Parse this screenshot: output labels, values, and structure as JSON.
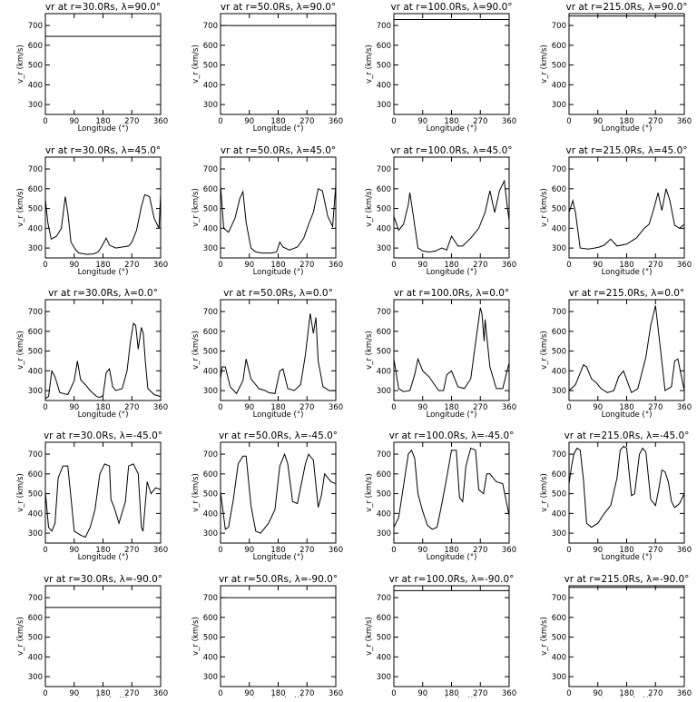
{
  "chart_data": {
    "type": "line",
    "xlabel": "Longitude (°)",
    "ylabel": "v_r (km/s)",
    "xlim": [
      0,
      360
    ],
    "ylim": [
      250,
      760
    ],
    "xticks": [
      "0",
      "90",
      "180",
      "270",
      "360"
    ],
    "yticks": [
      "300",
      "400",
      "500",
      "600",
      "700"
    ],
    "grid": false,
    "line_color": "#000000",
    "rows": [
      {
        "panels": [
          {
            "title": "vr at r=30.0Rs, λ=90.0°",
            "x": [
              0,
              360
            ],
            "y": [
              645,
              645
            ]
          },
          {
            "title": "vr at r=50.0Rs, λ=90.0°",
            "x": [
              0,
              360
            ],
            "y": [
              700,
              700
            ]
          },
          {
            "title": "vr at r=100.0Rs, λ=90.0°",
            "x": [
              0,
              360
            ],
            "y": [
              730,
              730
            ]
          },
          {
            "title": "vr at r=215.0Rs, λ=90.0°",
            "x": [
              0,
              360
            ],
            "y": [
              748,
              748
            ]
          }
        ]
      },
      {
        "panels": [
          {
            "title": "vr at r=30.0Rs, λ=45.0°",
            "x": [
              0,
              8,
              18,
              35,
              50,
              62,
              70,
              80,
              95,
              105,
              130,
              150,
              165,
              175,
              190,
              200,
              220,
              240,
              260,
              270,
              285,
              300,
              310,
              325,
              340,
              355,
              360
            ],
            "y": [
              545,
              425,
              345,
              360,
              400,
              560,
              480,
              330,
              290,
              275,
              268,
              270,
              280,
              305,
              350,
              315,
              300,
              305,
              310,
              330,
              390,
              510,
              570,
              560,
              450,
              400,
              570
            ]
          },
          {
            "title": "vr at r=50.0Rs, λ=45.0°",
            "x": [
              0,
              10,
              25,
              45,
              60,
              70,
              80,
              95,
              110,
              130,
              160,
              175,
              185,
              195,
              215,
              240,
              260,
              275,
              290,
              305,
              318,
              335,
              350,
              360
            ],
            "y": [
              620,
              400,
              380,
              450,
              550,
              585,
              430,
              300,
              280,
              275,
              275,
              280,
              330,
              305,
              290,
              305,
              350,
              420,
              480,
              600,
              590,
              460,
              410,
              620
            ]
          },
          {
            "title": "vr at r=100.0Rs, λ=45.0°",
            "x": [
              0,
              15,
              30,
              45,
              50,
              60,
              75,
              90,
              110,
              130,
              150,
              165,
              180,
              200,
              215,
              240,
              265,
              285,
              300,
              315,
              330,
              345,
              355,
              360
            ],
            "y": [
              460,
              390,
              420,
              520,
              580,
              470,
              300,
              285,
              280,
              285,
              300,
              290,
              360,
              310,
              310,
              350,
              400,
              480,
              590,
              480,
              590,
              640,
              500,
              440
            ]
          },
          {
            "title": "vr at r=215.0Rs, λ=45.0°",
            "x": [
              0,
              12,
              20,
              25,
              35,
              60,
              80,
              95,
              110,
              130,
              150,
              180,
              210,
              235,
              250,
              265,
              278,
              290,
              303,
              315,
              330,
              345,
              360
            ],
            "y": [
              480,
              540,
              480,
              420,
              300,
              295,
              300,
              305,
              315,
              345,
              310,
              320,
              350,
              400,
              420,
              500,
              580,
              490,
              600,
              540,
              415,
              400,
              420
            ]
          }
        ]
      },
      {
        "panels": [
          {
            "title": "vr at r=30.0Rs, λ=0.0°",
            "x": [
              0,
              10,
              20,
              30,
              45,
              70,
              90,
              100,
              110,
              125,
              140,
              160,
              170,
              180,
              190,
              200,
              210,
              220,
              240,
              255,
              265,
              275,
              282,
              290,
              300,
              306,
              312,
              320,
              340,
              360
            ],
            "y": [
              260,
              270,
              400,
              370,
              290,
              280,
              350,
              450,
              355,
              330,
              300,
              270,
              265,
              275,
              390,
              410,
              320,
              300,
              310,
              400,
              540,
              640,
              630,
              510,
              620,
              590,
              450,
              310,
              280,
              270
            ]
          },
          {
            "title": "vr at r=50.0Rs, λ=0.0°",
            "x": [
              0,
              5,
              15,
              30,
              50,
              70,
              80,
              95,
              105,
              120,
              140,
              150,
              170,
              185,
              195,
              210,
              230,
              250,
              265,
              280,
              290,
              298,
              305,
              320,
              340,
              360
            ],
            "y": [
              360,
              420,
              420,
              320,
              285,
              350,
              460,
              360,
              340,
              310,
              300,
              290,
              285,
              400,
              410,
              310,
              300,
              330,
              480,
              690,
              590,
              670,
              450,
              320,
              300,
              300
            ]
          },
          {
            "title": "vr at r=100.0Rs, λ=0.0°",
            "x": [
              0,
              15,
              30,
              50,
              65,
              75,
              90,
              110,
              140,
              155,
              165,
              180,
              200,
              220,
              240,
              260,
              270,
              275,
              282,
              285,
              300,
              320,
              340,
              360
            ],
            "y": [
              460,
              310,
              295,
              300,
              380,
              460,
              400,
              370,
              300,
              300,
              380,
              400,
              320,
              310,
              360,
              600,
              720,
              690,
              550,
              660,
              420,
              310,
              310,
              440
            ]
          },
          {
            "title": "vr at r=215.0Rs, λ=0.0°",
            "x": [
              0,
              20,
              35,
              45,
              55,
              70,
              85,
              100,
              120,
              140,
              155,
              170,
              195,
              215,
              240,
              255,
              270,
              285,
              300,
              320,
              330,
              340,
              360
            ],
            "y": [
              300,
              330,
              390,
              430,
              420,
              360,
              340,
              310,
              290,
              300,
              370,
              400,
              290,
              310,
              470,
              630,
              730,
              520,
              300,
              320,
              450,
              460,
              300
            ]
          }
        ]
      },
      {
        "panels": [
          {
            "title": "vr at r=30.0Rs, λ=-45.0°",
            "x": [
              0,
              10,
              20,
              30,
              40,
              55,
              70,
              80,
              90,
              100,
              110,
              125,
              140,
              155,
              170,
              185,
              200,
              205,
              215,
              230,
              250,
              260,
              275,
              290,
              300,
              305,
              312,
              318,
              330,
              345,
              360
            ],
            "y": [
              510,
              330,
              310,
              350,
              580,
              640,
              640,
              480,
              310,
              300,
              290,
              280,
              330,
              420,
              600,
              650,
              640,
              470,
              430,
              350,
              460,
              640,
              650,
              600,
              330,
              310,
              450,
              560,
              500,
              530,
              520
            ]
          },
          {
            "title": "vr at r=50.0Rs, λ=-45.0°",
            "x": [
              0,
              15,
              25,
              40,
              55,
              70,
              80,
              95,
              110,
              125,
              150,
              170,
              185,
              200,
              210,
              225,
              240,
              265,
              275,
              290,
              305,
              315,
              325,
              345,
              360
            ],
            "y": [
              510,
              320,
              330,
              470,
              650,
              690,
              690,
              440,
              310,
              300,
              350,
              420,
              640,
              700,
              650,
              460,
              450,
              650,
              700,
              670,
              430,
              490,
              600,
              560,
              550
            ]
          },
          {
            "title": "vr at r=100.0Rs, λ=-45.0°",
            "x": [
              0,
              15,
              30,
              45,
              55,
              65,
              75,
              90,
              105,
              120,
              135,
              150,
              165,
              180,
              195,
              205,
              215,
              225,
              240,
              255,
              265,
              280,
              290,
              300,
              320,
              340,
              355,
              360
            ],
            "y": [
              330,
              380,
              540,
              700,
              720,
              680,
              500,
              410,
              340,
              320,
              330,
              450,
              580,
              720,
              720,
              480,
              460,
              640,
              730,
              720,
              520,
              500,
              600,
              600,
              560,
              550,
              430,
              390
            ]
          },
          {
            "title": "vr at r=215.0Rs, λ=-45.0°",
            "x": [
              0,
              8,
              15,
              25,
              35,
              45,
              55,
              70,
              90,
              110,
              130,
              150,
              160,
              170,
              180,
              195,
              205,
              220,
              230,
              240,
              255,
              270,
              280,
              290,
              300,
              310,
              320,
              330,
              345,
              360
            ],
            "y": [
              550,
              640,
              700,
              730,
              720,
              570,
              350,
              330,
              350,
              400,
              440,
              580,
              720,
              740,
              730,
              490,
              500,
              700,
              730,
              710,
              470,
              440,
              520,
              620,
              610,
              560,
              460,
              430,
              450,
              500
            ]
          }
        ]
      },
      {
        "panels": [
          {
            "title": "vr at r=30.0Rs, λ=-90.0°",
            "x": [
              0,
              360
            ],
            "y": [
              650,
              650
            ]
          },
          {
            "title": "vr at r=50.0Rs, λ=-90.0°",
            "x": [
              0,
              360
            ],
            "y": [
              700,
              700
            ]
          },
          {
            "title": "vr at r=100.0Rs, λ=-90.0°",
            "x": [
              0,
              360
            ],
            "y": [
              735,
              735
            ]
          },
          {
            "title": "vr at r=215.0Rs, λ=-90.0°",
            "x": [
              0,
              360
            ],
            "y": [
              752,
              752
            ]
          }
        ]
      }
    ]
  }
}
